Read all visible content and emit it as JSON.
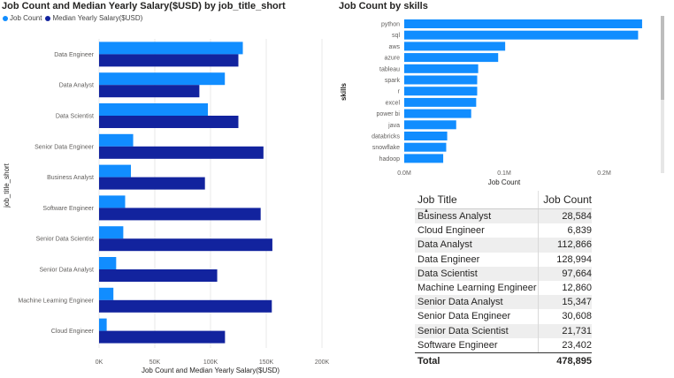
{
  "chart1": {
    "title": "Job Count and Median Yearly Salary($USD) by job_title_short",
    "legend": [
      {
        "label": "Job Count",
        "color": "#118DFF"
      },
      {
        "label": "Median Yearly Salary($USD)",
        "color": "#12239E"
      }
    ]
  },
  "chart2": {
    "title": "Job Count by skills"
  },
  "table": {
    "headers": [
      "Job Title",
      "Job Count"
    ],
    "rows": [
      {
        "title": "Business Analyst",
        "count": "28,584"
      },
      {
        "title": "Cloud Engineer",
        "count": "6,839"
      },
      {
        "title": "Data Analyst",
        "count": "112,866"
      },
      {
        "title": "Data Engineer",
        "count": "128,994"
      },
      {
        "title": "Data Scientist",
        "count": "97,664"
      },
      {
        "title": "Machine Learning Engineer",
        "count": "12,860"
      },
      {
        "title": "Senior Data Analyst",
        "count": "15,347"
      },
      {
        "title": "Senior Data Engineer",
        "count": "30,608"
      },
      {
        "title": "Senior Data Scientist",
        "count": "21,731"
      },
      {
        "title": "Software Engineer",
        "count": "23,402"
      }
    ],
    "total_label": "Total",
    "total_value": "478,895"
  },
  "chart_data": [
    {
      "type": "bar",
      "orientation": "horizontal",
      "title": "Job Count and Median Yearly Salary($USD) by job_title_short",
      "xlabel": "Job Count and Median Yearly Salary($USD)",
      "ylabel": "job_title_short",
      "categories": [
        "Data Engineer",
        "Data Analyst",
        "Data Scientist",
        "Senior Data Engineer",
        "Business Analyst",
        "Software Engineer",
        "Senior Data Scientist",
        "Senior Data Analyst",
        "Machine Learning Engineer",
        "Cloud Engineer"
      ],
      "series": [
        {
          "name": "Job Count",
          "color": "#118DFF",
          "values": [
            128994,
            112866,
            97664,
            30608,
            28584,
            23402,
            21731,
            15347,
            12860,
            6839
          ]
        },
        {
          "name": "Median Yearly Salary($USD)",
          "color": "#12239E",
          "values": [
            125000,
            90000,
            125000,
            147500,
            95000,
            145000,
            155500,
            106000,
            155000,
            113000
          ]
        }
      ],
      "xlim": [
        0,
        200000
      ],
      "xticks": [
        "0K",
        "50K",
        "100K",
        "150K",
        "200K"
      ],
      "grid": true,
      "legend": "top-left"
    },
    {
      "type": "bar",
      "orientation": "horizontal",
      "title": "Job Count by skills",
      "xlabel": "Job Count",
      "ylabel": "skills",
      "categories": [
        "python",
        "sql",
        "aws",
        "azure",
        "tableau",
        "spark",
        "r",
        "excel",
        "power bi",
        "java",
        "databricks",
        "snowflake",
        "hadoop"
      ],
      "series": [
        {
          "name": "Job Count",
          "color": "#118DFF",
          "values": [
            238000,
            234000,
            101000,
            94000,
            74000,
            73000,
            73000,
            72000,
            67000,
            52000,
            43000,
            42000,
            39000
          ]
        }
      ],
      "xlim": [
        0,
        250000
      ],
      "xticks": [
        "0.0M",
        "0.1M",
        "0.2M"
      ],
      "grid": false
    }
  ]
}
